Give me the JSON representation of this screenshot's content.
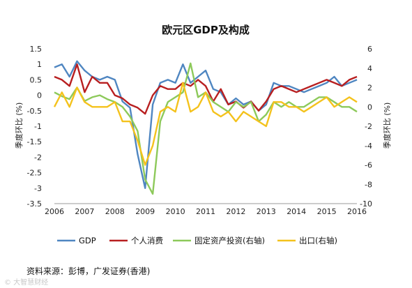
{
  "chart_data": {
    "type": "line",
    "title": "欧元区GDP及构成",
    "ylabel": "季度环比 (%)",
    "y2label": "季度环比 (%)",
    "ylim": [
      -3.5,
      1.5
    ],
    "y2lim": [
      -10,
      6
    ],
    "yticks": [
      "1.5",
      "1",
      "0.5",
      "0",
      "-0.5",
      "-1",
      "-1.5",
      "-2",
      "-2.5",
      "-3",
      "-3.5"
    ],
    "y2ticks": [
      "6",
      "4",
      "2",
      "0",
      "-2",
      "-4",
      "-6",
      "-8",
      "-10"
    ],
    "xlim": [
      2006,
      2016
    ],
    "xticks": [
      "2006",
      "2007",
      "2008",
      "2009",
      "2010",
      "2011",
      "2012",
      "2013",
      "2014",
      "2015",
      "2016"
    ],
    "grid": false,
    "legend_position": "bottom",
    "x": [
      2006.0,
      2006.25,
      2006.5,
      2006.75,
      2007.0,
      2007.25,
      2007.5,
      2007.75,
      2008.0,
      2008.25,
      2008.5,
      2008.75,
      2009.0,
      2009.25,
      2009.5,
      2009.75,
      2010.0,
      2010.25,
      2010.5,
      2010.75,
      2011.0,
      2011.25,
      2011.5,
      2011.75,
      2012.0,
      2012.25,
      2012.5,
      2012.75,
      2013.0,
      2013.25,
      2013.5,
      2013.75,
      2014.0,
      2014.25,
      2014.5,
      2014.75,
      2015.0,
      2015.25,
      2015.5,
      2015.75,
      2016.0
    ],
    "series": [
      {
        "name": "GDP",
        "axis": "left",
        "color": "#4f86c1",
        "values": [
          0.9,
          1.0,
          0.6,
          1.1,
          0.8,
          0.6,
          0.5,
          0.6,
          0.5,
          -0.2,
          -0.4,
          -1.9,
          -3.0,
          -0.3,
          0.4,
          0.5,
          0.4,
          1.0,
          0.4,
          0.6,
          0.8,
          0.2,
          0.1,
          -0.3,
          -0.1,
          -0.3,
          -0.2,
          -0.5,
          -0.3,
          0.4,
          0.3,
          0.3,
          0.2,
          0.1,
          0.2,
          0.3,
          0.4,
          0.6,
          0.3,
          0.4,
          0.5
        ]
      },
      {
        "name": "个人消费",
        "axis": "left",
        "color": "#b81f20",
        "values": [
          0.6,
          0.5,
          0.3,
          1.0,
          0.1,
          0.6,
          0.4,
          0.4,
          0.0,
          -0.1,
          -0.3,
          -0.4,
          -0.6,
          0.0,
          0.3,
          0.2,
          0.2,
          0.4,
          0.3,
          0.5,
          0.3,
          -0.2,
          0.2,
          -0.3,
          -0.2,
          -0.4,
          -0.2,
          -0.5,
          -0.2,
          0.2,
          0.3,
          0.2,
          0.1,
          0.2,
          0.3,
          0.4,
          0.5,
          0.4,
          0.3,
          0.5,
          0.6
        ]
      },
      {
        "name": "固定资产投资(右轴)",
        "axis": "right",
        "color": "#8dc95a",
        "values": [
          1.5,
          1.1,
          0.8,
          2.0,
          0.6,
          1.0,
          1.2,
          0.8,
          0.5,
          0.0,
          -1.0,
          -2.5,
          -7.5,
          -9.0,
          -1.5,
          0.5,
          1.0,
          1.5,
          4.5,
          1.0,
          1.5,
          0.5,
          0.0,
          -0.5,
          0.5,
          0.0,
          0.5,
          -1.5,
          -0.8,
          0.5,
          0.0,
          0.5,
          0.0,
          0.0,
          0.5,
          1.0,
          1.0,
          0.5,
          0.0,
          0.0,
          -0.5
        ]
      },
      {
        "name": "出口(右轴)",
        "axis": "right",
        "color": "#f4c21c",
        "values": [
          0.0,
          1.5,
          0.0,
          2.0,
          0.5,
          0.0,
          0.0,
          0.0,
          0.5,
          -1.5,
          -1.5,
          -3.5,
          -6.0,
          -4.0,
          -0.5,
          0.0,
          -0.5,
          2.5,
          -0.5,
          0.0,
          1.5,
          -0.5,
          -1.0,
          -0.5,
          -1.5,
          -0.5,
          -1.0,
          -1.5,
          -2.0,
          0.5,
          0.5,
          0.0,
          0.0,
          -0.5,
          0.0,
          0.5,
          1.0,
          0.0,
          0.5,
          1.0,
          0.5
        ]
      }
    ]
  },
  "footer": {
    "source": "资料来源：彭博，广发证券(香港)",
    "watermark": "©  大智慧财经"
  }
}
